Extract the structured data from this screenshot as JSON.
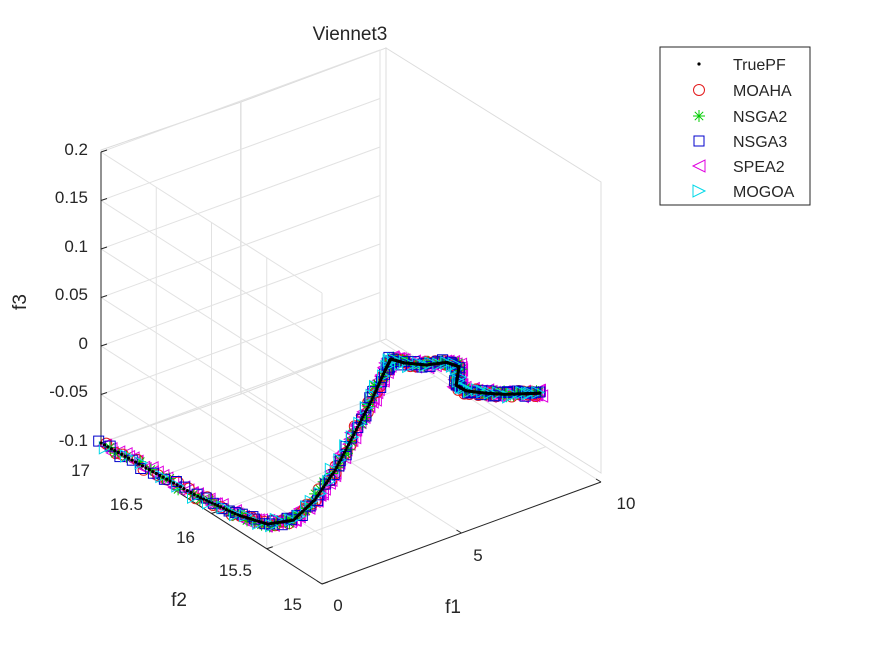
{
  "chart_data": {
    "type": "scatter",
    "title": "Viennet3",
    "xlabel": "f1",
    "ylabel": "f2",
    "zlabel": "f3",
    "xlim": [
      0,
      10
    ],
    "ylim": [
      15,
      17
    ],
    "zlim": [
      -0.1,
      0.2
    ],
    "x_ticks": [
      "0",
      "5",
      "10"
    ],
    "y_ticks": [
      "15",
      "15.5",
      "16",
      "16.5",
      "17"
    ],
    "z_ticks": [
      "-0.1",
      "-0.05",
      "0",
      "0.05",
      "0.1",
      "0.15",
      "0.2"
    ],
    "grid": true,
    "legend_position": "top-right",
    "series": [
      {
        "name": "TruePF",
        "marker": "dot",
        "color": "#000000"
      },
      {
        "name": "MOAHA",
        "marker": "circle",
        "color": "#e31a1c"
      },
      {
        "name": "NSGA2",
        "marker": "asterisk",
        "color": "#00cc00"
      },
      {
        "name": "NSGA3",
        "marker": "square",
        "color": "#0000cc"
      },
      {
        "name": "SPEA2",
        "marker": "triangle-left",
        "color": "#e000e0"
      },
      {
        "name": "MOGOA",
        "marker": "triangle-right",
        "color": "#00d8e8"
      }
    ],
    "front_points": [
      [
        0.0,
        17.0,
        -0.1
      ],
      [
        0.15,
        16.6,
        -0.1
      ],
      [
        0.3,
        16.2,
        -0.1
      ],
      [
        0.55,
        15.9,
        -0.1
      ],
      [
        0.9,
        15.72,
        -0.1
      ],
      [
        1.35,
        15.6,
        -0.092
      ],
      [
        1.8,
        15.52,
        -0.07
      ],
      [
        2.3,
        15.46,
        -0.04
      ],
      [
        2.8,
        15.42,
        -0.006
      ],
      [
        3.3,
        15.38,
        0.028
      ],
      [
        3.7,
        15.36,
        0.056
      ],
      [
        3.85,
        15.35,
        0.066
      ],
      [
        4.3,
        15.34,
        0.058
      ],
      [
        5.0,
        15.32,
        0.05
      ],
      [
        5.7,
        15.31,
        0.046
      ],
      [
        6.1,
        15.3,
        0.038
      ],
      [
        6.0,
        15.3,
        0.02
      ],
      [
        6.3,
        15.29,
        0.012
      ],
      [
        6.9,
        15.28,
        0.004
      ],
      [
        7.6,
        15.27,
        -0.004
      ],
      [
        8.3,
        15.26,
        -0.01
      ],
      [
        8.8,
        15.25,
        -0.014
      ]
    ]
  }
}
